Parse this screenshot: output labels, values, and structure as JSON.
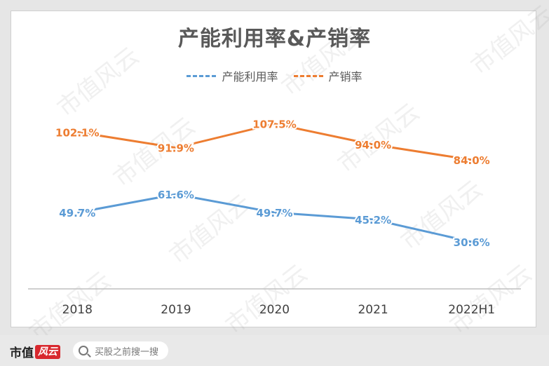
{
  "title": "产能利用率&产销率",
  "watermark": "市值风云",
  "footer": {
    "brand_text": "市值",
    "brand_logo_text": "风云",
    "search_placeholder": "买股之前搜一搜"
  },
  "chart_data": {
    "type": "line",
    "categories": [
      "2018",
      "2019",
      "2020",
      "2021",
      "2022H1"
    ],
    "series": [
      {
        "name": "产能利用率",
        "color": "#5b9bd5",
        "values": [
          49.7,
          61.6,
          49.7,
          45.2,
          30.6
        ],
        "labels": [
          "49.7%",
          "61.6%",
          "49.7%",
          "45.2%",
          "30.6%"
        ]
      },
      {
        "name": "产销率",
        "color": "#ed7d31",
        "values": [
          102.1,
          91.9,
          107.5,
          94.0,
          84.0
        ],
        "labels": [
          "102.1%",
          "91.9%",
          "107.5%",
          "94.0%",
          "84.0%"
        ]
      }
    ],
    "legend_position": "top",
    "grid": false,
    "ylim": [
      0,
      120
    ]
  }
}
